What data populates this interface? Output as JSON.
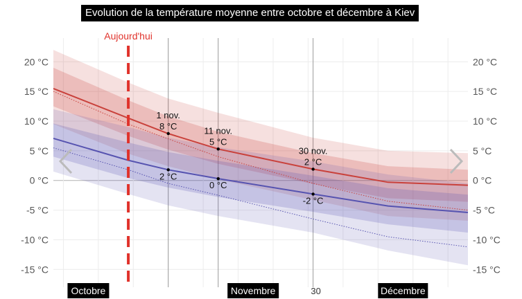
{
  "chart_data": {
    "type": "line",
    "title": "Evolution de la température moyenne entre octobre et décembre à Kiev",
    "y_ticks": [
      "20 °C",
      "15 °C",
      "10 °C",
      "5 °C",
      "0 °C",
      "-5 °C",
      "-10 °C",
      "-15 °C"
    ],
    "y_values": [
      20,
      15,
      10,
      5,
      0,
      -5,
      -10,
      -15
    ],
    "ylim": [
      -18,
      24
    ],
    "xlim": [
      "2023-10-09",
      "2023-12-31"
    ],
    "x_labels": [
      {
        "date": "2023-10-16",
        "text": "Octobre"
      },
      {
        "date": "2023-11-18",
        "text": "Novembre"
      },
      {
        "date": "2023-12-18",
        "text": "Décembre"
      }
    ],
    "extra_x_label": {
      "date": "2023-11-30",
      "text": "30"
    },
    "today": {
      "date": "2023-10-24",
      "label": "Aujourd'hui"
    },
    "grid": true,
    "series": [
      {
        "role": "max",
        "color": "#c9413b",
        "x": [
          "2023-10-09",
          "2023-10-24",
          "2023-11-01",
          "2023-11-11",
          "2023-11-30",
          "2023-12-15",
          "2023-12-31"
        ],
        "mean": [
          15.5,
          10.5,
          7.9,
          5.3,
          1.9,
          -0.3,
          -0.8
        ],
        "band_inner": [
          [
            12.5,
            19.0
          ],
          [
            7.5,
            13.5
          ],
          [
            5.2,
            10.8
          ],
          [
            2.8,
            8.2
          ],
          [
            -0.6,
            4.6
          ],
          [
            -3.0,
            2.4
          ],
          [
            -3.6,
            1.8
          ]
        ],
        "band_outer": [
          [
            9.5,
            22.0
          ],
          [
            4.5,
            16.5
          ],
          [
            2.4,
            13.8
          ],
          [
            0.2,
            11.4
          ],
          [
            -3.3,
            7.2
          ],
          [
            -6.0,
            5.0
          ],
          [
            -6.8,
            4.6
          ]
        ],
        "record_x": [
          "2023-10-09",
          "2023-10-24",
          "2023-11-01",
          "2023-11-11",
          "2023-11-30",
          "2023-12-15",
          "2023-12-31"
        ],
        "record": [
          15.0,
          9.5,
          7.0,
          4.0,
          -0.5,
          -3.5,
          -5.0
        ]
      },
      {
        "role": "min",
        "color": "#5653b0",
        "x": [
          "2023-10-09",
          "2023-10-24",
          "2023-11-01",
          "2023-11-11",
          "2023-11-30",
          "2023-12-15",
          "2023-12-31"
        ],
        "mean": [
          7.1,
          3.4,
          1.8,
          0.3,
          -2.3,
          -4.3,
          -5.4
        ],
        "band_inner": [
          [
            4.0,
            9.6
          ],
          [
            0.4,
            6.4
          ],
          [
            -1.2,
            4.8
          ],
          [
            -2.8,
            3.3
          ],
          [
            -5.3,
            0.8
          ],
          [
            -7.4,
            -1.3
          ],
          [
            -8.8,
            -2.4
          ]
        ],
        "band_outer": [
          [
            1.5,
            12.0
          ],
          [
            -2.3,
            9.0
          ],
          [
            -4.2,
            7.2
          ],
          [
            -6.0,
            5.6
          ],
          [
            -8.8,
            3.2
          ],
          [
            -11.8,
            1.0
          ],
          [
            -14.3,
            -0.5
          ]
        ],
        "record_x": [
          "2023-10-09",
          "2023-10-24",
          "2023-11-01",
          "2023-11-11",
          "2023-11-30",
          "2023-12-15",
          "2023-12-31"
        ],
        "record": [
          5.5,
          1.8,
          -0.5,
          -2.5,
          -6.5,
          -9.5,
          -11.2
        ]
      }
    ],
    "annotations": [
      {
        "date": "2023-11-01",
        "value": 7.9,
        "label_top": "1 nov.",
        "label_bottom": "8 °C"
      },
      {
        "date": "2023-11-11",
        "value": 5.3,
        "label_top": "11 nov.",
        "label_bottom": "5 °C"
      },
      {
        "date": "2023-11-30",
        "value": 1.9,
        "label_top": "30 nov.",
        "label_bottom": "2 °C"
      },
      {
        "date": "2023-11-01",
        "value": 1.8,
        "label_bottom": "2 °C"
      },
      {
        "date": "2023-11-11",
        "value": 0.3,
        "label_bottom": "0 °C"
      },
      {
        "date": "2023-11-30",
        "value": -2.3,
        "label_bottom": "-2 °C"
      }
    ]
  }
}
